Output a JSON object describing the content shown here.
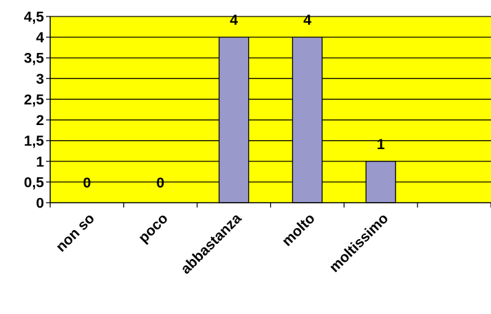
{
  "chart_data": {
    "type": "bar",
    "categories": [
      "non so",
      "poco",
      "abbastanza",
      "molto",
      "moltissimo",
      ""
    ],
    "values": [
      0,
      0,
      4,
      4,
      1,
      null
    ],
    "data_labels": [
      "0",
      "0",
      "4",
      "4",
      "1",
      ""
    ],
    "y_ticks": [
      "0",
      "0,5",
      "1",
      "1,5",
      "2",
      "2,5",
      "3",
      "3,5",
      "4",
      "4,5"
    ],
    "ylim": [
      0,
      4.5
    ],
    "grid": true,
    "legend": "none",
    "title": "",
    "xlabel": "",
    "ylabel": ""
  },
  "colors": {
    "plot_background": "#ffff00",
    "bar_fill": "#9999cc",
    "bar_stroke": "#000000",
    "gridline": "#000000",
    "axis": "#000000"
  }
}
